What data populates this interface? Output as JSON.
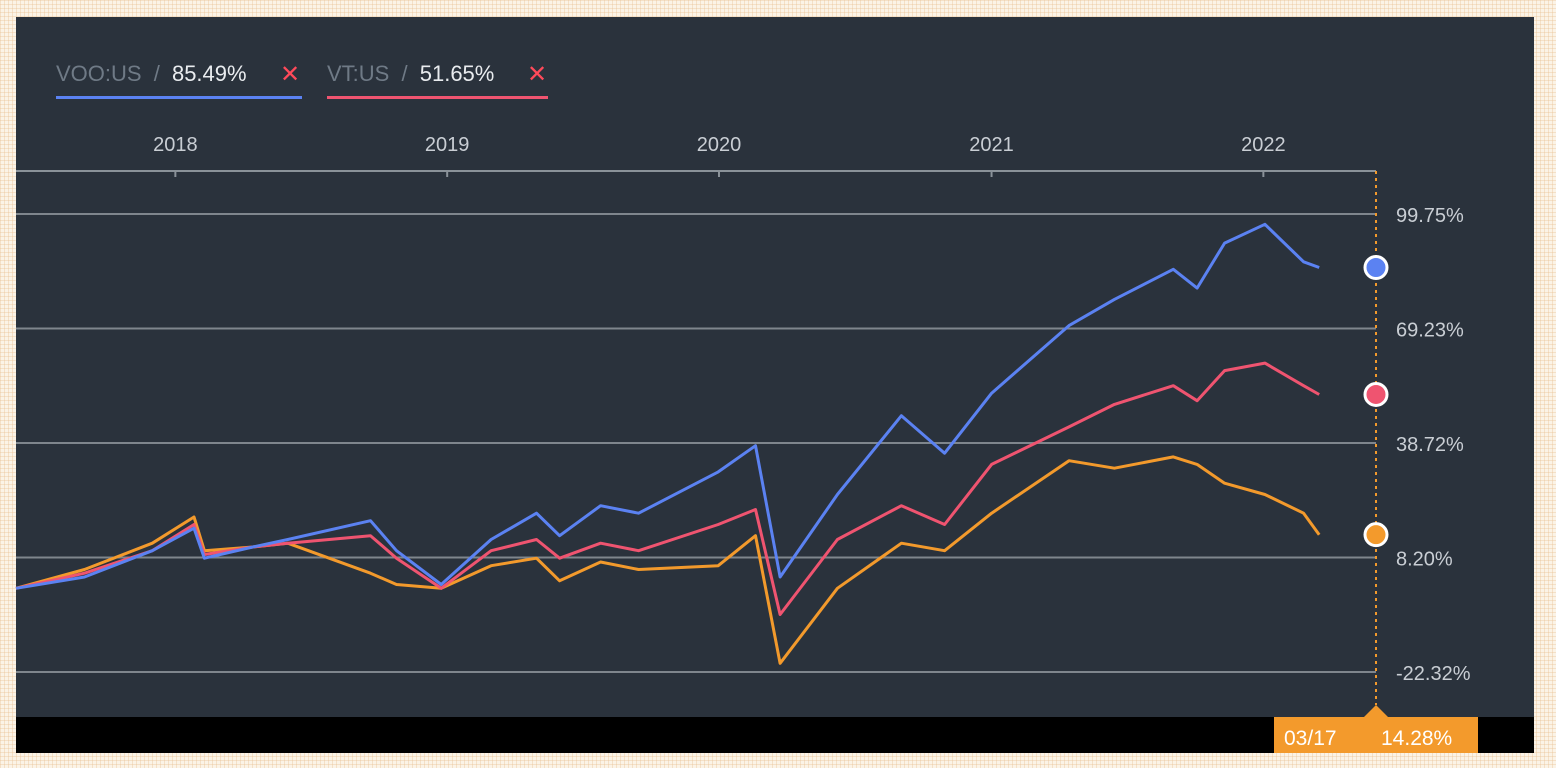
{
  "legend": [
    {
      "ticker": "VOO:US",
      "separator": "/",
      "value": "85.49%",
      "close": "✕",
      "color": "#5b82f2"
    },
    {
      "ticker": "VT:US",
      "separator": "/",
      "value": "51.65%",
      "close": "✕",
      "color": "#ef5470"
    }
  ],
  "crosshair": {
    "date": "03/17",
    "value": "14.28%"
  },
  "chart_data": {
    "type": "line",
    "x_tick_labels": [
      "2018",
      "2019",
      "2020",
      "2021",
      "2022"
    ],
    "y_tick_labels": [
      "99.75%",
      "69.23%",
      "38.72%",
      "8.20%",
      "-22.32%"
    ],
    "ylim": [
      -22.32,
      99.75
    ],
    "grid": true,
    "legend_position": "top-left",
    "x": [
      "2017-06-01",
      "2017-09-01",
      "2017-12-01",
      "2018-01-26",
      "2018-02-09",
      "2018-04-15",
      "2018-06-01",
      "2018-09-20",
      "2018-10-25",
      "2018-12-24",
      "2019-03-01",
      "2019-05-01",
      "2019-06-01",
      "2019-07-26",
      "2019-09-15",
      "2019-12-31",
      "2020-02-19",
      "2020-03-23",
      "2020-06-08",
      "2020-09-02",
      "2020-10-30",
      "2021-01-01",
      "2021-04-15",
      "2021-06-15",
      "2021-09-02",
      "2021-10-04",
      "2021-11-10",
      "2022-01-03",
      "2022-02-24",
      "2022-03-17"
    ],
    "series": [
      {
        "name": "VOO:US",
        "color": "#5b82f2",
        "values": [
          0,
          3,
          10,
          16,
          8,
          11,
          13,
          18,
          10,
          1,
          13,
          20,
          14,
          22,
          20,
          31,
          38,
          3,
          25,
          46,
          36,
          52,
          70,
          77,
          85,
          80,
          92,
          97,
          87,
          85.49
        ]
      },
      {
        "name": "VT:US",
        "color": "#ef5470",
        "values": [
          0,
          4,
          10,
          17,
          9,
          11,
          12,
          14,
          8,
          0,
          10,
          13,
          8,
          12,
          10,
          17,
          21,
          -7,
          13,
          22,
          17,
          33,
          43,
          49,
          54,
          50,
          58,
          60,
          54,
          51.65
        ]
      },
      {
        "color": "#f39a2c",
        "values": [
          0,
          5,
          12,
          19,
          10,
          11,
          12,
          4,
          1,
          0,
          6,
          8,
          2,
          7,
          5,
          6,
          14,
          -20,
          0,
          12,
          10,
          20,
          34,
          32,
          35,
          33,
          28,
          25,
          20,
          14.28
        ]
      }
    ]
  }
}
